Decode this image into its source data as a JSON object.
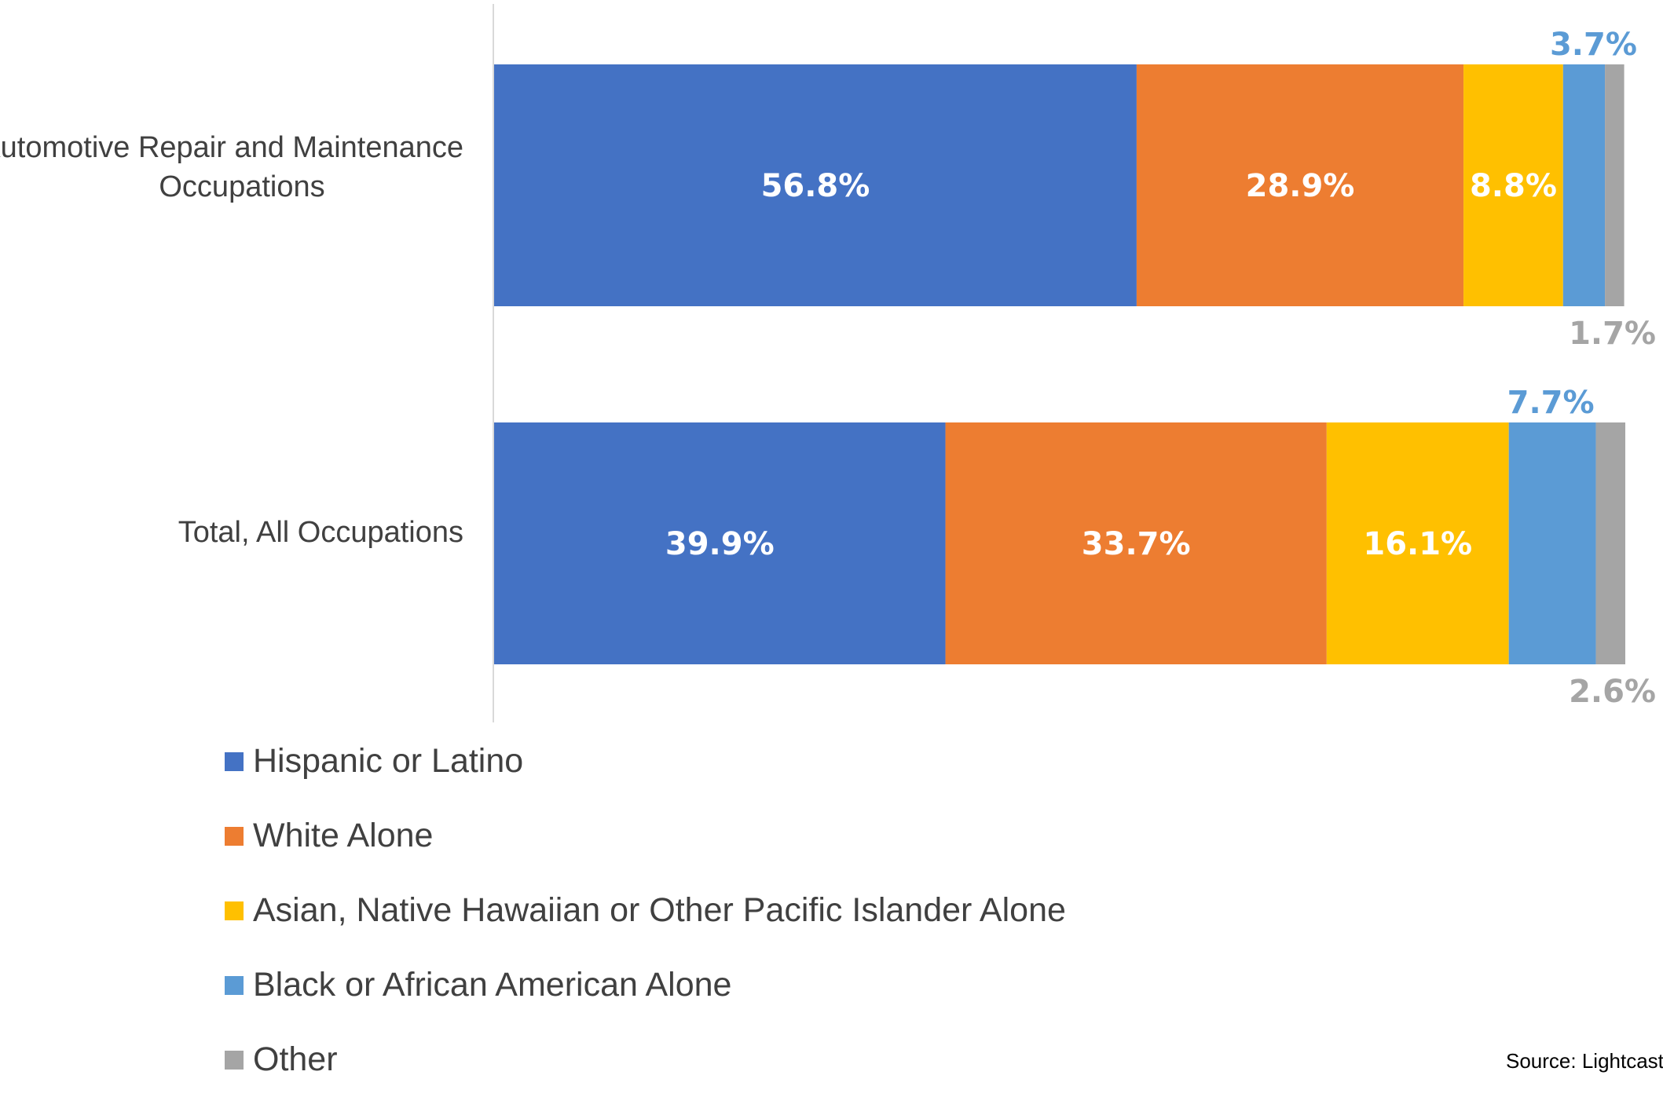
{
  "chart_data": {
    "type": "bar",
    "orientation": "horizontal",
    "stacked": true,
    "categories": [
      "Automotive Repair and Maintenance Occupations",
      "Total, All Occupations"
    ],
    "series": [
      {
        "name": "Hispanic or Latino",
        "color": "#4472C4",
        "values": [
          56.8,
          39.9
        ],
        "labels": [
          "56.8%",
          "39.9%"
        ]
      },
      {
        "name": "White Alone",
        "color": "#ED7D31",
        "values": [
          28.9,
          33.7
        ],
        "labels": [
          "28.9%",
          "33.7%"
        ]
      },
      {
        "name": "Asian, Native Hawaiian or Other Pacific Islander Alone",
        "color": "#FFC000",
        "values": [
          8.8,
          16.1
        ],
        "labels": [
          "8.8%",
          "16.1%"
        ]
      },
      {
        "name": "Black or African American Alone",
        "color": "#5B9BD5",
        "values": [
          3.7,
          7.7
        ],
        "labels": [
          "3.7%",
          "7.7%"
        ]
      },
      {
        "name": "Other",
        "color": "#A5A5A5",
        "values": [
          1.7,
          2.6
        ],
        "labels": [
          "1.7%",
          "2.6%"
        ]
      }
    ],
    "xlim": [
      0,
      100
    ],
    "grid": false,
    "legend_position": "bottom-left",
    "source": "Source: Lightcast"
  }
}
